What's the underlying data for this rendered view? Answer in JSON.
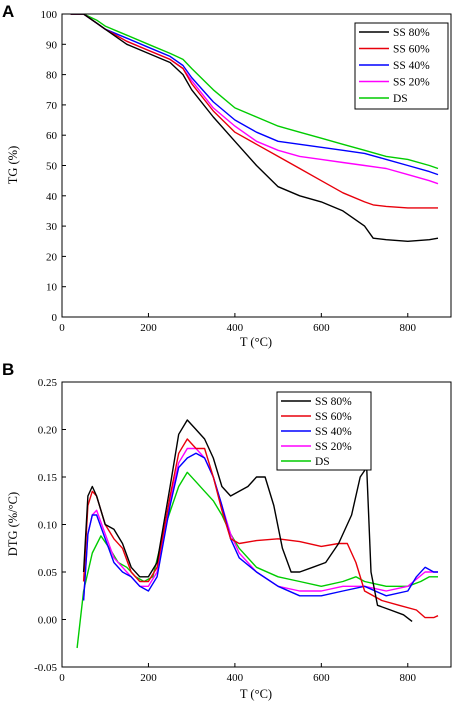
{
  "colors": {
    "SS 80%": "#000000",
    "SS 60%": "#e8000b",
    "SS 40%": "#0000ff",
    "SS 20%": "#ff00ff",
    "DS": "#00cc00"
  },
  "chart_data": [
    {
      "panel_label": "A",
      "type": "line",
      "xlabel": "T (°C)",
      "ylabel": "TG (%)",
      "xlim": [
        0,
        900
      ],
      "ylim": [
        0,
        100
      ],
      "xticks": [
        0,
        200,
        400,
        600,
        800
      ],
      "yticks": [
        0,
        10,
        20,
        30,
        40,
        50,
        60,
        70,
        80,
        90,
        100
      ],
      "legend_position": "top-right",
      "series": [
        {
          "name": "SS 80%",
          "x": [
            20,
            50,
            80,
            100,
            150,
            200,
            250,
            280,
            300,
            350,
            400,
            450,
            500,
            550,
            600,
            650,
            700,
            720,
            750,
            800,
            850,
            870
          ],
          "y": [
            100,
            100,
            97,
            95,
            90,
            87,
            84,
            80,
            75,
            66,
            58,
            50,
            43,
            40,
            38,
            35,
            30,
            26,
            25.5,
            25,
            25.5,
            26
          ]
        },
        {
          "name": "SS 60%",
          "x": [
            20,
            50,
            80,
            100,
            150,
            200,
            250,
            280,
            300,
            350,
            400,
            450,
            500,
            550,
            600,
            650,
            700,
            720,
            750,
            800,
            850,
            870
          ],
          "y": [
            100,
            100,
            97,
            95,
            91,
            88,
            85,
            82,
            77,
            68,
            61,
            57,
            53,
            49,
            45,
            41,
            38,
            37,
            36.5,
            36,
            36,
            36
          ]
        },
        {
          "name": "SS 40%",
          "x": [
            20,
            50,
            80,
            100,
            150,
            200,
            250,
            280,
            300,
            350,
            400,
            450,
            500,
            550,
            600,
            650,
            700,
            750,
            800,
            850,
            870
          ],
          "y": [
            100,
            100,
            97,
            95,
            92,
            89,
            86,
            83,
            79,
            71,
            65,
            61,
            58,
            57,
            56,
            55,
            54,
            52,
            50,
            48,
            47
          ]
        },
        {
          "name": "SS 20%",
          "x": [
            20,
            50,
            80,
            100,
            150,
            200,
            250,
            280,
            300,
            350,
            400,
            450,
            500,
            550,
            600,
            650,
            700,
            750,
            800,
            850,
            870
          ],
          "y": [
            100,
            100,
            97,
            95,
            91,
            88,
            85,
            82,
            78,
            69,
            63,
            58,
            55,
            53,
            52,
            51,
            50,
            49,
            47,
            45,
            44
          ]
        },
        {
          "name": "DS",
          "x": [
            20,
            50,
            80,
            100,
            150,
            200,
            250,
            280,
            300,
            350,
            400,
            450,
            500,
            550,
            600,
            650,
            700,
            750,
            800,
            850,
            870
          ],
          "y": [
            100,
            100,
            98,
            96,
            93,
            90,
            87,
            85,
            82,
            75,
            69,
            66,
            63,
            61,
            59,
            57,
            55,
            53,
            52,
            50,
            49
          ]
        }
      ]
    },
    {
      "panel_label": "B",
      "type": "line",
      "xlabel": "T (°C)",
      "ylabel": "DTG (%/°C)",
      "xlim": [
        0,
        900
      ],
      "ylim": [
        -0.05,
        0.25
      ],
      "xticks": [
        0,
        200,
        400,
        600,
        800
      ],
      "yticks": [
        "-0.05",
        "0.00",
        "0.05",
        "0.10",
        "0.15",
        "0.20",
        "0.25"
      ],
      "legend_position": "top-center",
      "series": [
        {
          "name": "SS 80%",
          "x": [
            50,
            60,
            70,
            80,
            100,
            120,
            140,
            160,
            180,
            200,
            220,
            250,
            270,
            290,
            310,
            330,
            350,
            370,
            390,
            410,
            430,
            450,
            470,
            490,
            510,
            530,
            550,
            580,
            610,
            640,
            670,
            690,
            705,
            715,
            730,
            760,
            790,
            810
          ],
          "y": [
            0.05,
            0.13,
            0.14,
            0.13,
            0.1,
            0.095,
            0.08,
            0.055,
            0.045,
            0.045,
            0.06,
            0.14,
            0.195,
            0.21,
            0.2,
            0.19,
            0.17,
            0.14,
            0.13,
            0.135,
            0.14,
            0.15,
            0.15,
            0.12,
            0.075,
            0.05,
            0.05,
            0.055,
            0.06,
            0.08,
            0.11,
            0.15,
            0.16,
            0.05,
            0.015,
            0.01,
            0.005,
            -0.002
          ]
        },
        {
          "name": "SS 60%",
          "x": [
            50,
            60,
            70,
            80,
            100,
            120,
            140,
            160,
            180,
            200,
            220,
            250,
            270,
            290,
            310,
            330,
            350,
            370,
            390,
            410,
            450,
            500,
            550,
            600,
            640,
            660,
            680,
            700,
            740,
            780,
            820,
            840,
            860,
            870
          ],
          "y": [
            0.04,
            0.12,
            0.135,
            0.13,
            0.1,
            0.085,
            0.075,
            0.05,
            0.04,
            0.04,
            0.055,
            0.13,
            0.175,
            0.19,
            0.18,
            0.18,
            0.15,
            0.115,
            0.085,
            0.08,
            0.083,
            0.085,
            0.082,
            0.077,
            0.08,
            0.08,
            0.06,
            0.03,
            0.02,
            0.015,
            0.01,
            0.002,
            0.002,
            0.004
          ]
        },
        {
          "name": "SS 40%",
          "x": [
            50,
            60,
            70,
            80,
            100,
            120,
            140,
            160,
            180,
            200,
            220,
            250,
            270,
            290,
            310,
            330,
            350,
            370,
            390,
            410,
            450,
            500,
            550,
            600,
            650,
            700,
            750,
            800,
            820,
            840,
            860,
            870
          ],
          "y": [
            0.02,
            0.09,
            0.11,
            0.11,
            0.085,
            0.06,
            0.05,
            0.045,
            0.035,
            0.03,
            0.045,
            0.12,
            0.16,
            0.17,
            0.175,
            0.17,
            0.15,
            0.12,
            0.085,
            0.065,
            0.05,
            0.035,
            0.025,
            0.025,
            0.03,
            0.035,
            0.025,
            0.03,
            0.045,
            0.055,
            0.05,
            0.05
          ]
        },
        {
          "name": "SS 20%",
          "x": [
            50,
            60,
            70,
            80,
            100,
            120,
            140,
            160,
            180,
            200,
            220,
            250,
            270,
            290,
            310,
            330,
            350,
            370,
            390,
            410,
            450,
            500,
            550,
            600,
            650,
            700,
            750,
            800,
            840,
            860,
            870
          ],
          "y": [
            0.02,
            0.09,
            0.11,
            0.115,
            0.09,
            0.065,
            0.055,
            0.045,
            0.035,
            0.035,
            0.05,
            0.125,
            0.165,
            0.18,
            0.18,
            0.17,
            0.15,
            0.12,
            0.09,
            0.07,
            0.05,
            0.035,
            0.03,
            0.03,
            0.035,
            0.035,
            0.03,
            0.035,
            0.05,
            0.05,
            0.05
          ]
        },
        {
          "name": "DS",
          "x": [
            35,
            50,
            70,
            90,
            110,
            130,
            150,
            170,
            190,
            210,
            240,
            270,
            290,
            310,
            330,
            350,
            370,
            390,
            410,
            450,
            500,
            550,
            600,
            650,
            680,
            700,
            750,
            800,
            830,
            850,
            870
          ],
          "y": [
            -0.03,
            0.03,
            0.07,
            0.088,
            0.075,
            0.06,
            0.055,
            0.045,
            0.04,
            0.045,
            0.1,
            0.14,
            0.155,
            0.145,
            0.135,
            0.125,
            0.11,
            0.09,
            0.075,
            0.055,
            0.045,
            0.04,
            0.035,
            0.04,
            0.045,
            0.04,
            0.035,
            0.035,
            0.04,
            0.045,
            0.045
          ]
        }
      ]
    }
  ]
}
